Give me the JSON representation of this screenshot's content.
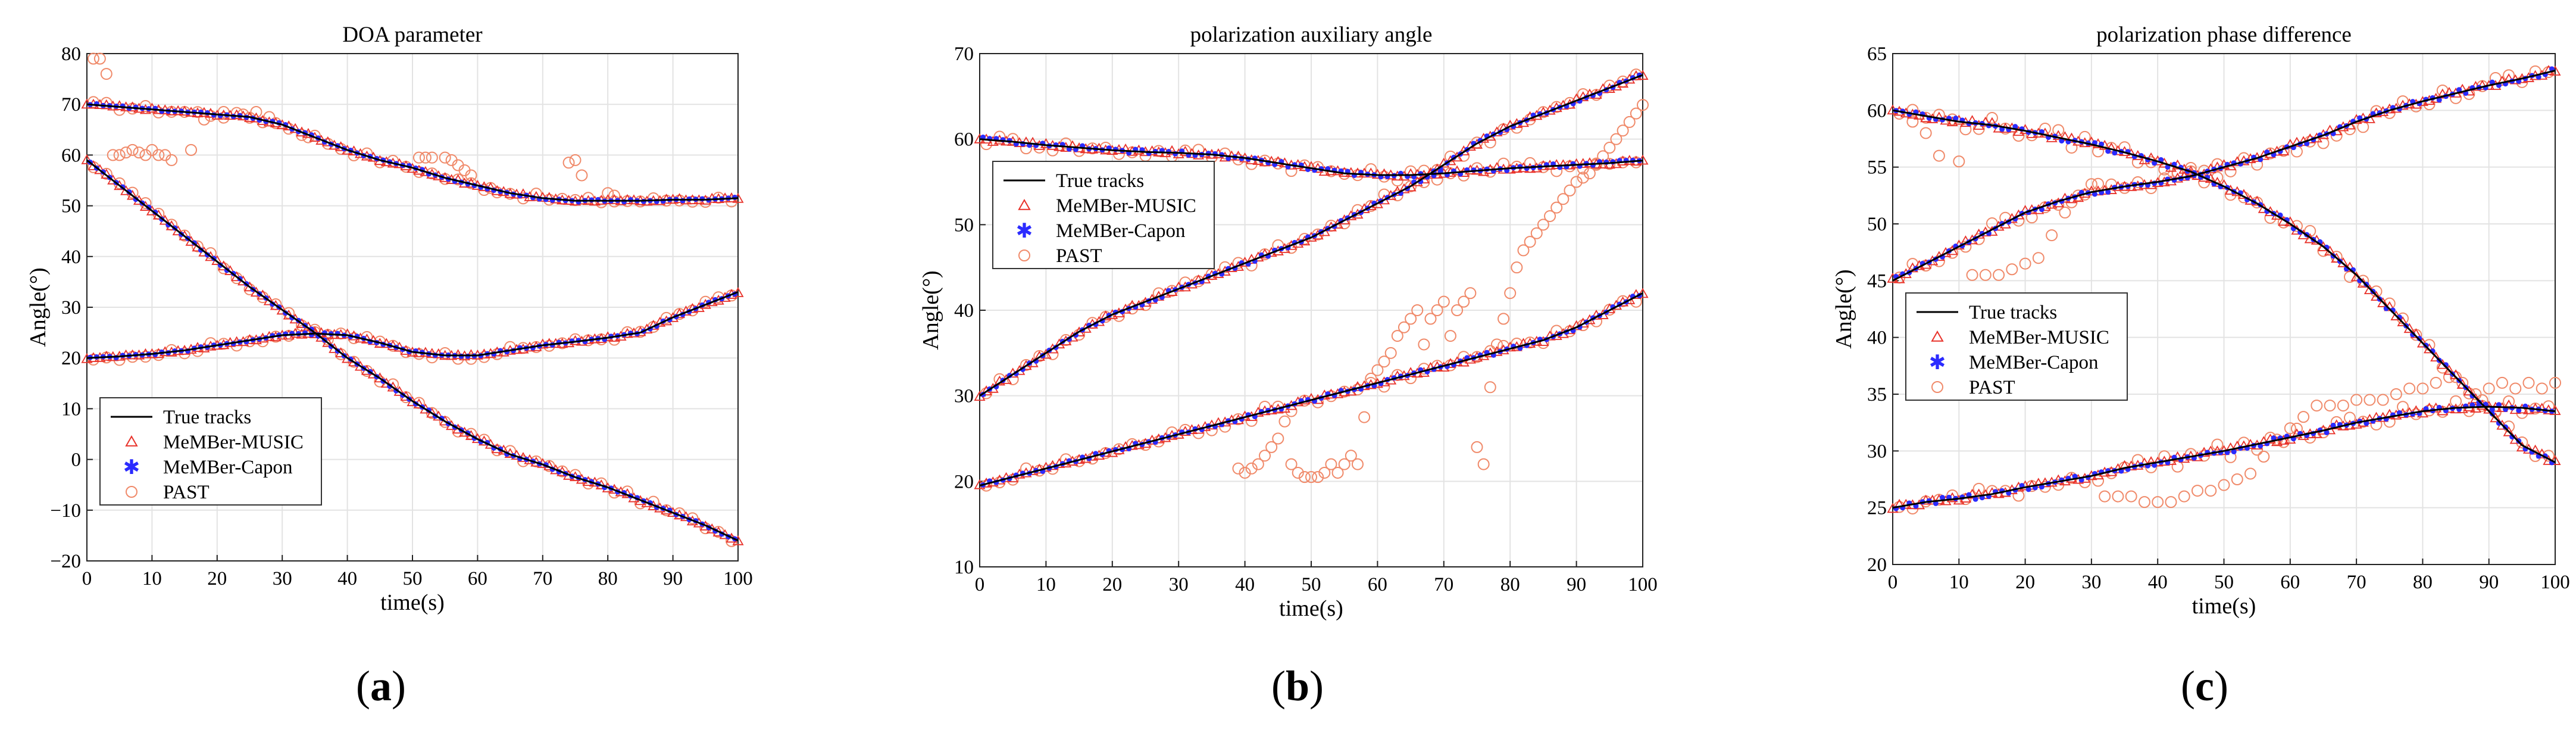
{
  "chart_data": [
    {
      "type": "line",
      "title": "DOA parameter",
      "xlabel": "time(s)",
      "ylabel": "Angle(°)",
      "caption_letter": "a",
      "xlim": [
        0,
        100
      ],
      "ylim": [
        -20,
        80
      ],
      "xticks": [
        0,
        10,
        20,
        30,
        40,
        50,
        60,
        70,
        80,
        90,
        100
      ],
      "yticks": [
        -20,
        -10,
        0,
        10,
        20,
        30,
        40,
        50,
        60,
        70,
        80
      ],
      "grid": true,
      "legend_position": "bottom-left",
      "legend": [
        "True tracks",
        "MeMBer-MUSIC",
        "MeMBer-Capon",
        "PAST"
      ],
      "colors": {
        "truth": "#000000",
        "music": "#e8322a",
        "capon": "#2b2bff",
        "past": "#f08a6a"
      },
      "truth": [
        {
          "name": "track 1",
          "x": [
            0,
            5,
            10,
            15,
            20,
            25,
            30,
            35,
            40,
            45,
            50,
            55,
            60,
            65,
            70,
            75,
            80,
            85,
            90,
            95,
            100
          ],
          "y": [
            70,
            69.5,
            69,
            68.5,
            68,
            67.5,
            66,
            63.5,
            61,
            59,
            57.5,
            55.5,
            54,
            52.5,
            51.5,
            51,
            51,
            51,
            51.2,
            51.2,
            51.5
          ]
        },
        {
          "name": "track 2",
          "x": [
            0,
            5,
            10,
            15,
            20,
            25,
            30,
            35,
            40,
            45,
            50,
            55,
            60,
            65,
            70,
            75,
            80,
            85,
            90,
            95,
            100
          ],
          "y": [
            59,
            54,
            49,
            44,
            39,
            34,
            29.5,
            25,
            20,
            16,
            11.5,
            7.5,
            4,
            1,
            -1,
            -3.5,
            -5.5,
            -8,
            -10.5,
            -13,
            -16
          ]
        },
        {
          "name": "track 3",
          "x": [
            0,
            5,
            10,
            15,
            20,
            25,
            30,
            35,
            40,
            45,
            50,
            55,
            60,
            65,
            70,
            75,
            80,
            85,
            90,
            95,
            100
          ],
          "y": [
            20,
            20.3,
            20.8,
            21.5,
            22.5,
            23.5,
            24.5,
            24.8,
            24.5,
            23,
            21.2,
            20.5,
            20.5,
            21.5,
            22.5,
            23.2,
            24,
            25,
            28,
            30.5,
            33
          ]
        }
      ],
      "past_outliers": {
        "x": [
          1,
          2,
          3,
          4,
          5,
          6,
          7,
          8,
          9,
          10,
          11,
          12,
          13,
          16,
          18,
          21,
          24,
          26,
          28,
          34,
          51,
          52,
          53,
          55,
          56,
          57,
          58,
          59,
          62,
          74,
          75,
          76,
          80,
          81
        ],
        "y": [
          79,
          79,
          76,
          60,
          60,
          60.5,
          61,
          60.5,
          60,
          61,
          60,
          60,
          59,
          61,
          67,
          68.5,
          68,
          68.5,
          67.5,
          63.5,
          59.5,
          59.5,
          59.5,
          59.5,
          59,
          58,
          57,
          56,
          53.5,
          58.5,
          59,
          56,
          52.5,
          52
        ]
      }
    },
    {
      "type": "line",
      "title": "polarization auxiliary angle",
      "xlabel": "time(s)",
      "ylabel": "Angle(°)",
      "caption_letter": "b",
      "xlim": [
        0,
        100
      ],
      "ylim": [
        10,
        70
      ],
      "xticks": [
        0,
        10,
        20,
        30,
        40,
        50,
        60,
        70,
        80,
        90,
        100
      ],
      "yticks": [
        10,
        20,
        30,
        40,
        50,
        60,
        70
      ],
      "grid": true,
      "legend_position": "top-left",
      "legend": [
        "True tracks",
        "MeMBer-MUSIC",
        "MeMBer-Capon",
        "PAST"
      ],
      "colors": {
        "truth": "#000000",
        "music": "#e8322a",
        "capon": "#2b2bff",
        "past": "#f08a6a"
      },
      "truth": [
        {
          "name": "track 1",
          "x": [
            0,
            5,
            10,
            15,
            20,
            25,
            30,
            35,
            40,
            45,
            50,
            55,
            60,
            65,
            70,
            75,
            80,
            85,
            90,
            95,
            100
          ],
          "y": [
            60,
            59.7,
            59.3,
            59,
            58.7,
            58.5,
            58.4,
            58.2,
            57.8,
            57.2,
            56.6,
            56,
            55.8,
            55.8,
            56,
            56.3,
            56.6,
            56.8,
            57,
            57.2,
            57.5
          ]
        },
        {
          "name": "track 2",
          "x": [
            0,
            5,
            10,
            15,
            20,
            25,
            30,
            35,
            40,
            45,
            50,
            55,
            60,
            65,
            70,
            75,
            80,
            85,
            90,
            95,
            100
          ],
          "y": [
            30,
            32.5,
            35,
            37.5,
            39.5,
            41,
            42.5,
            44,
            45.5,
            47,
            48.5,
            50.5,
            52.5,
            54.5,
            57,
            59.5,
            61.5,
            63,
            64.5,
            66,
            67.5
          ]
        },
        {
          "name": "track 3",
          "x": [
            0,
            5,
            10,
            15,
            20,
            25,
            30,
            35,
            40,
            45,
            50,
            55,
            60,
            65,
            70,
            75,
            80,
            85,
            90,
            95,
            100
          ],
          "y": [
            19.5,
            20.5,
            21.5,
            22.5,
            23.5,
            24.5,
            25.5,
            26.5,
            27.5,
            28.5,
            29.5,
            30.5,
            31.5,
            32.5,
            33.5,
            34.5,
            35.5,
            36.5,
            38,
            40,
            42
          ]
        }
      ],
      "past_outliers": {
        "x": [
          39,
          40,
          41,
          42,
          43,
          44,
          45,
          46,
          47,
          48,
          49,
          50,
          51,
          52,
          53,
          54,
          55,
          56,
          57,
          58,
          59,
          60,
          61,
          62,
          63,
          64,
          65,
          66,
          67,
          68,
          69,
          70,
          71,
          72,
          73,
          74,
          75,
          76,
          77,
          78,
          79,
          80,
          81,
          82,
          83,
          84,
          85,
          86,
          87,
          88,
          89,
          90,
          91,
          92,
          93,
          94,
          95,
          96,
          97,
          98,
          99,
          100
        ],
        "y": [
          21.5,
          21,
          21.5,
          22,
          23,
          24,
          25,
          27,
          22,
          21,
          20.5,
          20.5,
          20.5,
          21,
          22,
          21,
          22,
          23,
          22,
          27.5,
          32,
          33,
          34,
          35,
          37,
          38,
          39,
          40,
          36,
          39,
          40,
          41,
          37,
          40,
          41,
          42,
          24,
          22,
          31,
          36,
          39,
          42,
          45,
          47,
          48,
          49,
          50,
          51,
          52,
          53,
          54,
          55,
          55.5,
          56,
          57,
          58,
          59,
          60,
          61,
          62,
          63,
          64
        ]
      }
    },
    {
      "type": "line",
      "title": "polarization phase difference",
      "xlabel": "time(s)",
      "ylabel": "Angle(°)",
      "caption_letter": "c",
      "xlim": [
        0,
        100
      ],
      "ylim": [
        20,
        65
      ],
      "xticks": [
        0,
        10,
        20,
        30,
        40,
        50,
        60,
        70,
        80,
        90,
        100
      ],
      "yticks": [
        20,
        25,
        30,
        35,
        40,
        45,
        50,
        55,
        60,
        65
      ],
      "grid": true,
      "legend_position": "middle-left",
      "legend": [
        "True tracks",
        "MeMBer-MUSIC",
        "MeMBer-Capon",
        "PAST"
      ],
      "colors": {
        "truth": "#000000",
        "music": "#e8322a",
        "capon": "#2b2bff",
        "past": "#f08a6a"
      },
      "truth": [
        {
          "name": "track 1",
          "x": [
            0,
            5,
            10,
            15,
            20,
            25,
            30,
            35,
            40,
            45,
            50,
            55,
            60,
            65,
            70,
            75,
            80,
            85,
            90,
            95,
            100
          ],
          "y": [
            60,
            59.5,
            59,
            58.7,
            58.2,
            57.6,
            57,
            56.3,
            55.5,
            54.6,
            53.3,
            51.8,
            50,
            48,
            45.5,
            42.5,
            39.5,
            36.5,
            33.5,
            30.5,
            29
          ]
        },
        {
          "name": "track 2",
          "x": [
            0,
            5,
            10,
            15,
            20,
            25,
            30,
            35,
            40,
            45,
            50,
            55,
            60,
            65,
            70,
            75,
            80,
            85,
            90,
            95,
            100
          ],
          "y": [
            45,
            46.5,
            48,
            49.5,
            51,
            52,
            52.8,
            53.3,
            53.7,
            54.2,
            55,
            55.8,
            56.8,
            57.8,
            59,
            60,
            60.8,
            61.5,
            62.2,
            62.8,
            63.5
          ]
        },
        {
          "name": "track 3",
          "x": [
            0,
            5,
            10,
            15,
            20,
            25,
            30,
            35,
            40,
            45,
            50,
            55,
            60,
            65,
            70,
            75,
            80,
            85,
            90,
            95,
            100
          ],
          "y": [
            25,
            25.5,
            25.8,
            26.2,
            26.8,
            27.3,
            27.8,
            28.5,
            29,
            29.5,
            30,
            30.6,
            31.2,
            31.8,
            32.5,
            33,
            33.5,
            33.8,
            33.9,
            33.8,
            33.5
          ]
        }
      ],
      "past_outliers": {
        "x": [
          3,
          5,
          7,
          10,
          12,
          14,
          16,
          18,
          20,
          22,
          24,
          26,
          28,
          30,
          32,
          34,
          36,
          38,
          40,
          42,
          44,
          46,
          48,
          50,
          52,
          54,
          56,
          58,
          60,
          62,
          64,
          66,
          68,
          70,
          72,
          74,
          76,
          78,
          80,
          82,
          84,
          86,
          88,
          90,
          92,
          94,
          96,
          98,
          100
        ],
        "y": [
          59,
          58,
          56,
          55.5,
          45.5,
          45.5,
          45.5,
          46,
          46.5,
          47,
          49,
          51,
          52.5,
          53.5,
          26,
          26,
          26,
          25.5,
          25.5,
          25.5,
          26,
          26.5,
          26.5,
          27,
          27.5,
          28,
          29.5,
          31,
          32,
          33,
          34,
          34,
          34,
          34.5,
          34.5,
          34.5,
          35,
          35.5,
          35.5,
          36,
          36.5,
          36,
          35,
          35.5,
          36,
          35.5,
          36,
          35.5,
          36
        ]
      }
    }
  ],
  "captions": {
    "a": "a",
    "b": "b",
    "c": "c"
  }
}
